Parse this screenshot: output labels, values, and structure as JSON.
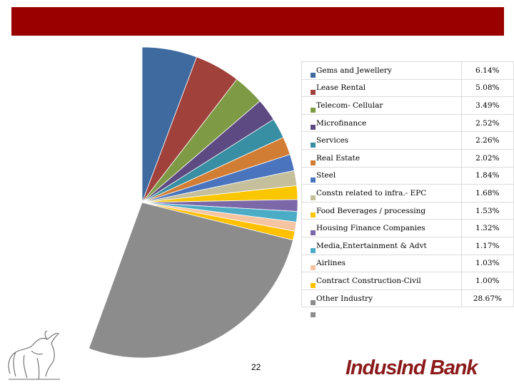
{
  "page_number": "22",
  "brand_name": "IndusInd Bank",
  "colors": {
    "title_bar": "#990000",
    "brand": "#8b1a1a"
  },
  "chart_data": {
    "type": "pie",
    "categories": [
      "Gems and Jewellery",
      "Lease Rental",
      "Telecom- Cellular",
      "Microfinance",
      "Services",
      "Real Estate",
      "Steel",
      "Constn related to infra.- EPC",
      "Food Beverages / processing",
      "Housing Finance Companies",
      "Media,Entertainment & Advt",
      "Airlines",
      "Contract Construction-Civil",
      "Other Industry"
    ],
    "values": [
      6.14,
      5.08,
      3.49,
      2.52,
      2.26,
      2.02,
      1.84,
      1.68,
      1.53,
      1.32,
      1.17,
      1.03,
      1.0,
      28.67
    ],
    "value_labels": [
      "6.14%",
      "5.08%",
      "3.49%",
      "2.52%",
      "2.26%",
      "2.02%",
      "1.84%",
      "1.68%",
      "1.53%",
      "1.32%",
      "1.17%",
      "1.03%",
      "1.00%",
      "28.67%"
    ],
    "colors": [
      "#3e6aa0",
      "#a0413c",
      "#7f9a45",
      "#5d4a82",
      "#388ea2",
      "#d27d34",
      "#4a74bd",
      "#c5bf9c",
      "#f9c600",
      "#7b68a8",
      "#4bacc6",
      "#f7c4a2",
      "#ffc000",
      "#8c8c8c"
    ],
    "legend_position": "right-table"
  }
}
